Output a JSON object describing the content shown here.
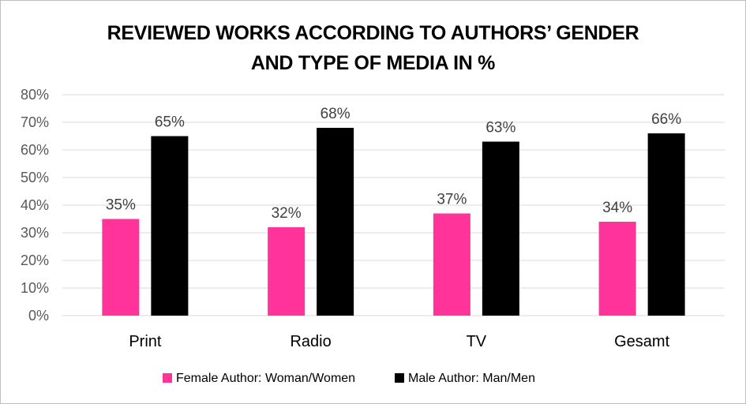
{
  "chart_data": {
    "type": "bar",
    "title_lines": [
      "REVIEWED WORKS ACCORDING TO AUTHORS’ GENDER",
      "AND TYPE OF MEDIA IN %"
    ],
    "categories": [
      "Print",
      "Radio",
      "TV",
      "Gesamt"
    ],
    "series": [
      {
        "name": "Female Author: Woman/Women",
        "color": "#ff3399",
        "values": [
          35,
          32,
          37,
          34
        ],
        "labels": [
          "35%",
          "32%",
          "37%",
          "34%"
        ]
      },
      {
        "name": "Male Author: Man/Men",
        "color": "#000000",
        "values": [
          65,
          68,
          63,
          66
        ],
        "labels": [
          "65%",
          "68%",
          "63%",
          "66%"
        ]
      }
    ],
    "ylim": [
      0,
      80
    ],
    "yticks": [
      "0%",
      "10%",
      "20%",
      "30%",
      "40%",
      "50%",
      "60%",
      "70%",
      "80%"
    ],
    "ytick_values": [
      0,
      10,
      20,
      30,
      40,
      50,
      60,
      70,
      80
    ],
    "grid": true,
    "gridline_color": "#d9d9d9",
    "legend_position": "bottom"
  }
}
